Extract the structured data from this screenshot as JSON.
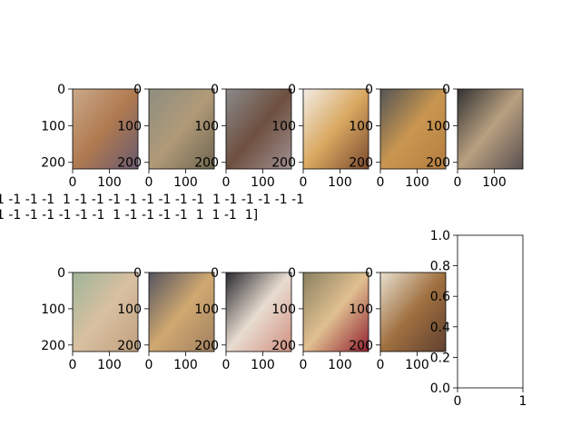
{
  "chart_data": [
    {
      "type": "image",
      "xlim": [
        0,
        178
      ],
      "ylim": [
        218,
        0
      ],
      "xticks": [
        0,
        100
      ],
      "yticks": [
        0,
        100,
        200
      ]
    },
    {
      "type": "image",
      "xlim": [
        0,
        178
      ],
      "ylim": [
        218,
        0
      ],
      "xticks": [
        0,
        100
      ],
      "yticks": [
        0,
        100,
        200
      ]
    },
    {
      "type": "image",
      "xlim": [
        0,
        178
      ],
      "ylim": [
        218,
        0
      ],
      "xticks": [
        0,
        100
      ],
      "yticks": [
        0,
        100,
        200
      ]
    },
    {
      "type": "image",
      "xlim": [
        0,
        178
      ],
      "ylim": [
        218,
        0
      ],
      "xticks": [
        0,
        100
      ],
      "yticks": [
        0,
        100,
        200
      ]
    },
    {
      "type": "image",
      "xlim": [
        0,
        178
      ],
      "ylim": [
        218,
        0
      ],
      "xticks": [
        0,
        100
      ],
      "yticks": [
        0,
        100,
        200
      ]
    },
    {
      "type": "image",
      "xlim": [
        0,
        178
      ],
      "ylim": [
        218,
        0
      ],
      "xticks": [
        0,
        100
      ],
      "yticks": [
        0,
        100,
        200
      ]
    },
    {
      "type": "image",
      "xlim": [
        0,
        178
      ],
      "ylim": [
        218,
        0
      ],
      "xticks": [
        0,
        100
      ],
      "yticks": [
        0,
        100,
        200
      ]
    },
    {
      "type": "image",
      "xlim": [
        0,
        178
      ],
      "ylim": [
        218,
        0
      ],
      "xticks": [
        0,
        100
      ],
      "yticks": [
        0,
        100,
        200
      ]
    },
    {
      "type": "image",
      "xlim": [
        0,
        178
      ],
      "ylim": [
        218,
        0
      ],
      "xticks": [
        0,
        100
      ],
      "yticks": [
        0,
        100,
        200
      ]
    },
    {
      "type": "image",
      "xlim": [
        0,
        178
      ],
      "ylim": [
        218,
        0
      ],
      "xticks": [
        0,
        100
      ],
      "yticks": [
        0,
        100,
        200
      ]
    },
    {
      "type": "image",
      "xlim": [
        0,
        178
      ],
      "ylim": [
        218,
        0
      ],
      "xticks": [
        0,
        100
      ],
      "yticks": [
        0,
        100,
        200
      ]
    },
    {
      "type": "empty",
      "xlim": [
        0,
        1
      ],
      "ylim": [
        0,
        1
      ],
      "xticks": [
        0,
        1
      ],
      "yticks": [
        {
          "value": 0,
          "label": "0.0"
        },
        0.2,
        0.4,
        0.6,
        0.8,
        {
          "value": 1,
          "label": "1.0"
        }
      ]
    }
  ],
  "label_lines": [
    "1 -1 -1 -1  1 -1 -1 -1 -1 -1 -1 -1 -1  1 -1 -1 -1 -1 -1",
    "1 -1 -1 -1 -1 -1 -1  1 -1 -1 -1 -1  1  1 -1  1]"
  ]
}
